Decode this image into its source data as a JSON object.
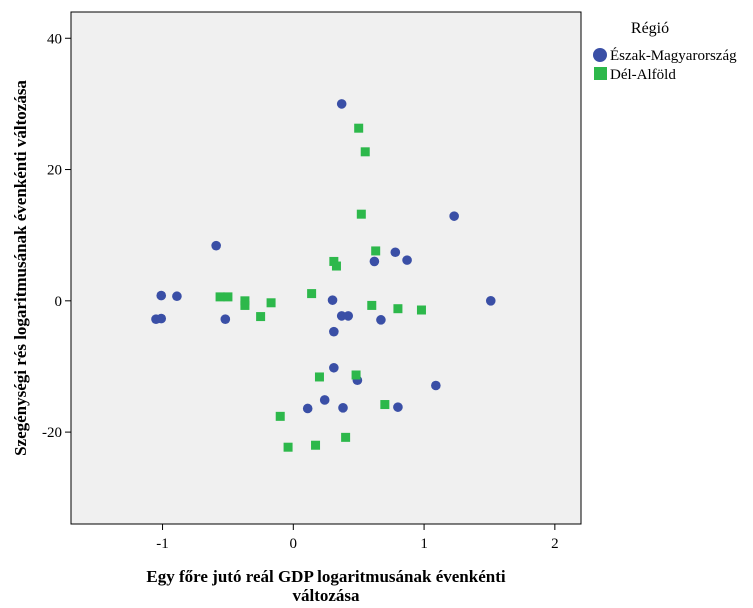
{
  "chart_data": {
    "type": "scatter",
    "xlabel": [
      "Egy főre jutó reál GDP logaritmusának évenkénti",
      "változása"
    ],
    "ylabel": "Szegénységi rés logaritmusának évenkénti változása",
    "xlim": [
      -1.7,
      2.2
    ],
    "ylim": [
      -34,
      44
    ],
    "xticks": [
      -1,
      0,
      1,
      2
    ],
    "yticks": [
      -20,
      0,
      20,
      40
    ],
    "xtick_labels": [
      "-1",
      "0",
      "1",
      "2"
    ],
    "ytick_labels": [
      "-20",
      "0",
      "20",
      "40"
    ],
    "grid": false,
    "plot_background": "#f0f0f0",
    "legend": {
      "title": "Régió",
      "position": "right-outside"
    },
    "series": [
      {
        "name": "Észak-Magyarország",
        "marker": "circle",
        "color": "#3a4fa6",
        "points": [
          {
            "x": 0.37,
            "y": 30.0
          },
          {
            "x": 1.23,
            "y": 12.9
          },
          {
            "x": -0.59,
            "y": 8.4
          },
          {
            "x": 0.78,
            "y": 7.4
          },
          {
            "x": 0.87,
            "y": 6.2
          },
          {
            "x": 0.62,
            "y": 6.0
          },
          {
            "x": -1.01,
            "y": 0.8
          },
          {
            "x": -0.89,
            "y": 0.7
          },
          {
            "x": 0.3,
            "y": 0.1
          },
          {
            "x": 1.51,
            "y": 0.0
          },
          {
            "x": -1.05,
            "y": -2.8
          },
          {
            "x": -1.01,
            "y": -2.7
          },
          {
            "x": -0.52,
            "y": -2.8
          },
          {
            "x": 0.37,
            "y": -2.3
          },
          {
            "x": 0.42,
            "y": -2.3
          },
          {
            "x": 0.67,
            "y": -2.9
          },
          {
            "x": 0.31,
            "y": -4.7
          },
          {
            "x": 0.31,
            "y": -10.2
          },
          {
            "x": 0.49,
            "y": -12.1
          },
          {
            "x": 1.09,
            "y": -12.9
          },
          {
            "x": 0.24,
            "y": -15.1
          },
          {
            "x": 0.11,
            "y": -16.4
          },
          {
            "x": 0.38,
            "y": -16.3
          },
          {
            "x": 0.8,
            "y": -16.2
          }
        ]
      },
      {
        "name": "Dél-Alföld",
        "marker": "square",
        "color": "#2db84b",
        "points": [
          {
            "x": 0.5,
            "y": 26.3
          },
          {
            "x": 0.55,
            "y": 22.7
          },
          {
            "x": 0.52,
            "y": 13.2
          },
          {
            "x": 0.63,
            "y": 7.6
          },
          {
            "x": 0.31,
            "y": 6.0
          },
          {
            "x": 0.33,
            "y": 5.3
          },
          {
            "x": 0.14,
            "y": 1.1
          },
          {
            "x": -0.56,
            "y": 0.6
          },
          {
            "x": -0.5,
            "y": 0.6
          },
          {
            "x": -0.37,
            "y": 0.0
          },
          {
            "x": -0.37,
            "y": -0.7
          },
          {
            "x": -0.17,
            "y": -0.3
          },
          {
            "x": 0.6,
            "y": -0.7
          },
          {
            "x": 0.8,
            "y": -1.2
          },
          {
            "x": 0.98,
            "y": -1.4
          },
          {
            "x": -0.25,
            "y": -2.4
          },
          {
            "x": 0.2,
            "y": -11.6
          },
          {
            "x": 0.48,
            "y": -11.3
          },
          {
            "x": 0.7,
            "y": -15.8
          },
          {
            "x": -0.1,
            "y": -17.6
          },
          {
            "x": 0.4,
            "y": -20.8
          },
          {
            "x": 0.17,
            "y": -22.0
          },
          {
            "x": -0.04,
            "y": -22.3
          }
        ]
      }
    ]
  }
}
